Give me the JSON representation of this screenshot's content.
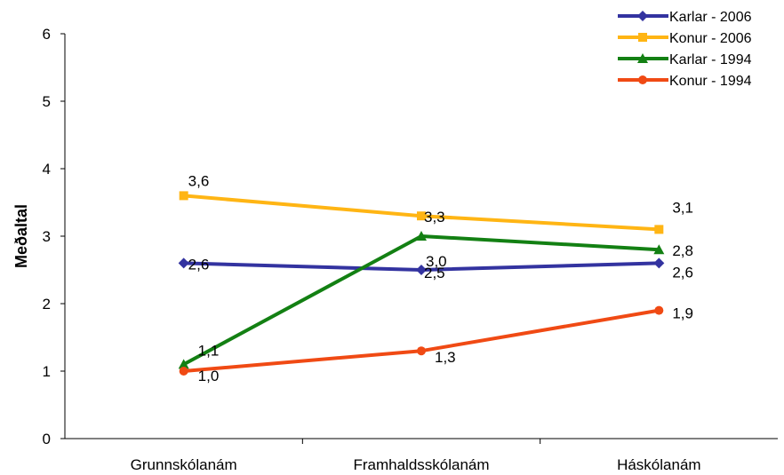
{
  "chart_data": {
    "type": "line",
    "ylabel": "Meðaltal",
    "xlabel": "",
    "ylim": [
      0,
      6
    ],
    "yticks": [
      "0",
      "1",
      "2",
      "3",
      "4",
      "5",
      "6"
    ],
    "categories": [
      "Grunnskólanám",
      "Framhaldsskólanám",
      "Háskólanám"
    ],
    "legend_position": "top-right",
    "grid": false,
    "series": [
      {
        "name": "Karlar - 2006",
        "color": "#3333A0",
        "marker": "diamond",
        "values": [
          2.6,
          2.5,
          2.6
        ],
        "labels": [
          "2,6",
          "2,5",
          "2,6"
        ]
      },
      {
        "name": "Konur - 2006",
        "color": "#FFB514",
        "marker": "square",
        "values": [
          3.6,
          3.3,
          3.1
        ],
        "labels": [
          "3,6",
          "3,3",
          "3,1"
        ]
      },
      {
        "name": "Karlar - 1994",
        "color": "#138013",
        "marker": "triangle",
        "values": [
          1.1,
          3.0,
          2.8
        ],
        "labels": [
          "1,1",
          "3,0",
          "2,8"
        ]
      },
      {
        "name": "Konur - 1994",
        "color": "#F04A14",
        "marker": "circle",
        "values": [
          1.0,
          1.3,
          1.9
        ],
        "labels": [
          "1,0",
          "1,3",
          "1,9"
        ]
      }
    ]
  }
}
